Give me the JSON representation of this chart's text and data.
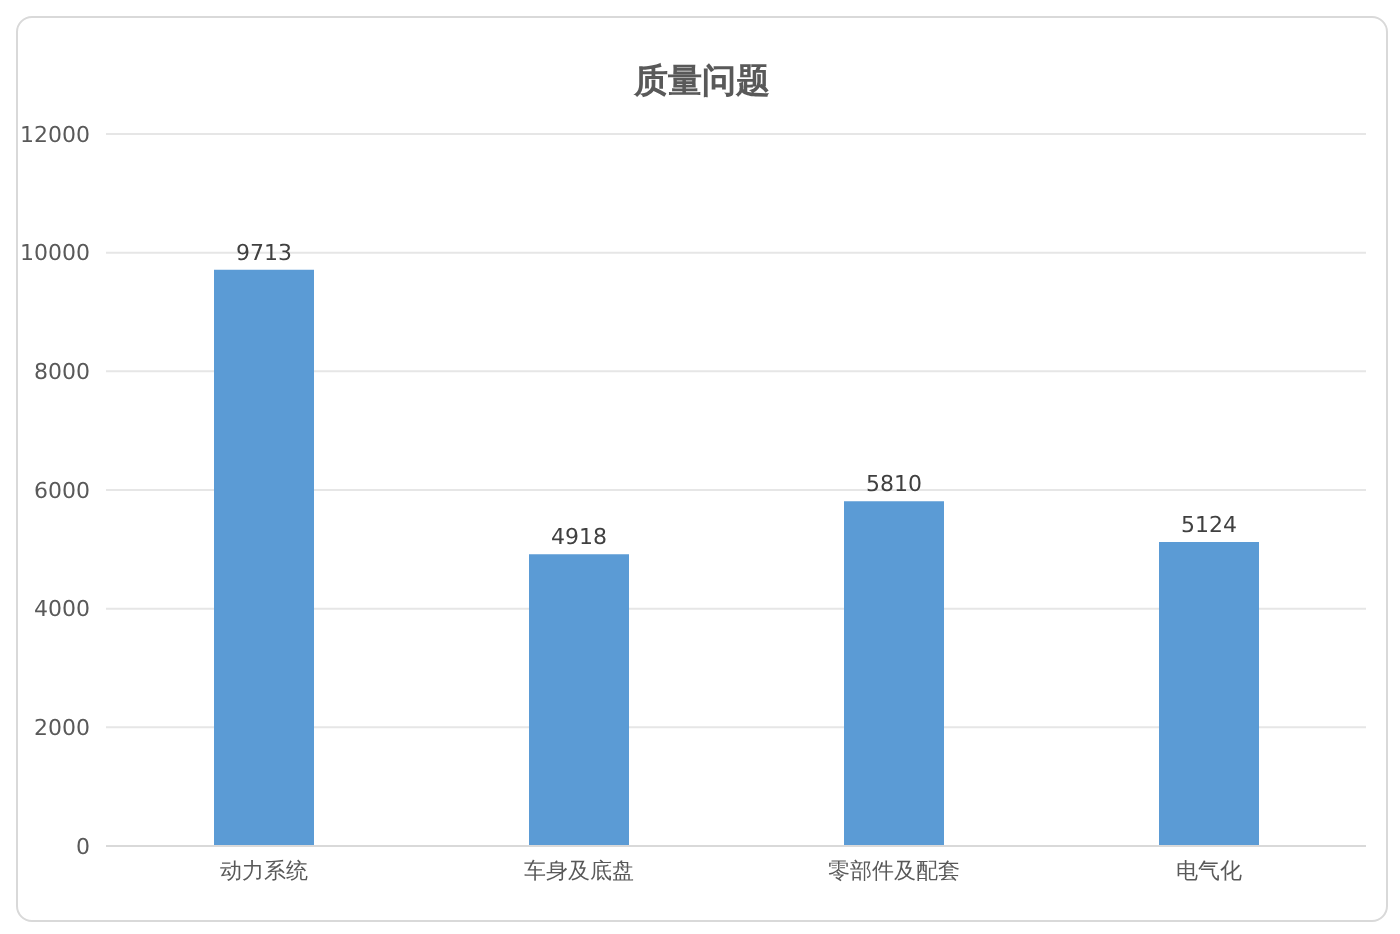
{
  "chart_data": {
    "type": "bar",
    "title": "质量问题",
    "categories": [
      "动力系统",
      "车身及底盘",
      "零部件及配套",
      "电气化"
    ],
    "values": [
      9713,
      4918,
      5810,
      5124
    ],
    "color": "#5b9bd5",
    "ylim": [
      0,
      12000
    ],
    "yticks": [
      0,
      2000,
      4000,
      6000,
      8000,
      10000,
      12000
    ],
    "grid": "y",
    "data_labels": true
  }
}
